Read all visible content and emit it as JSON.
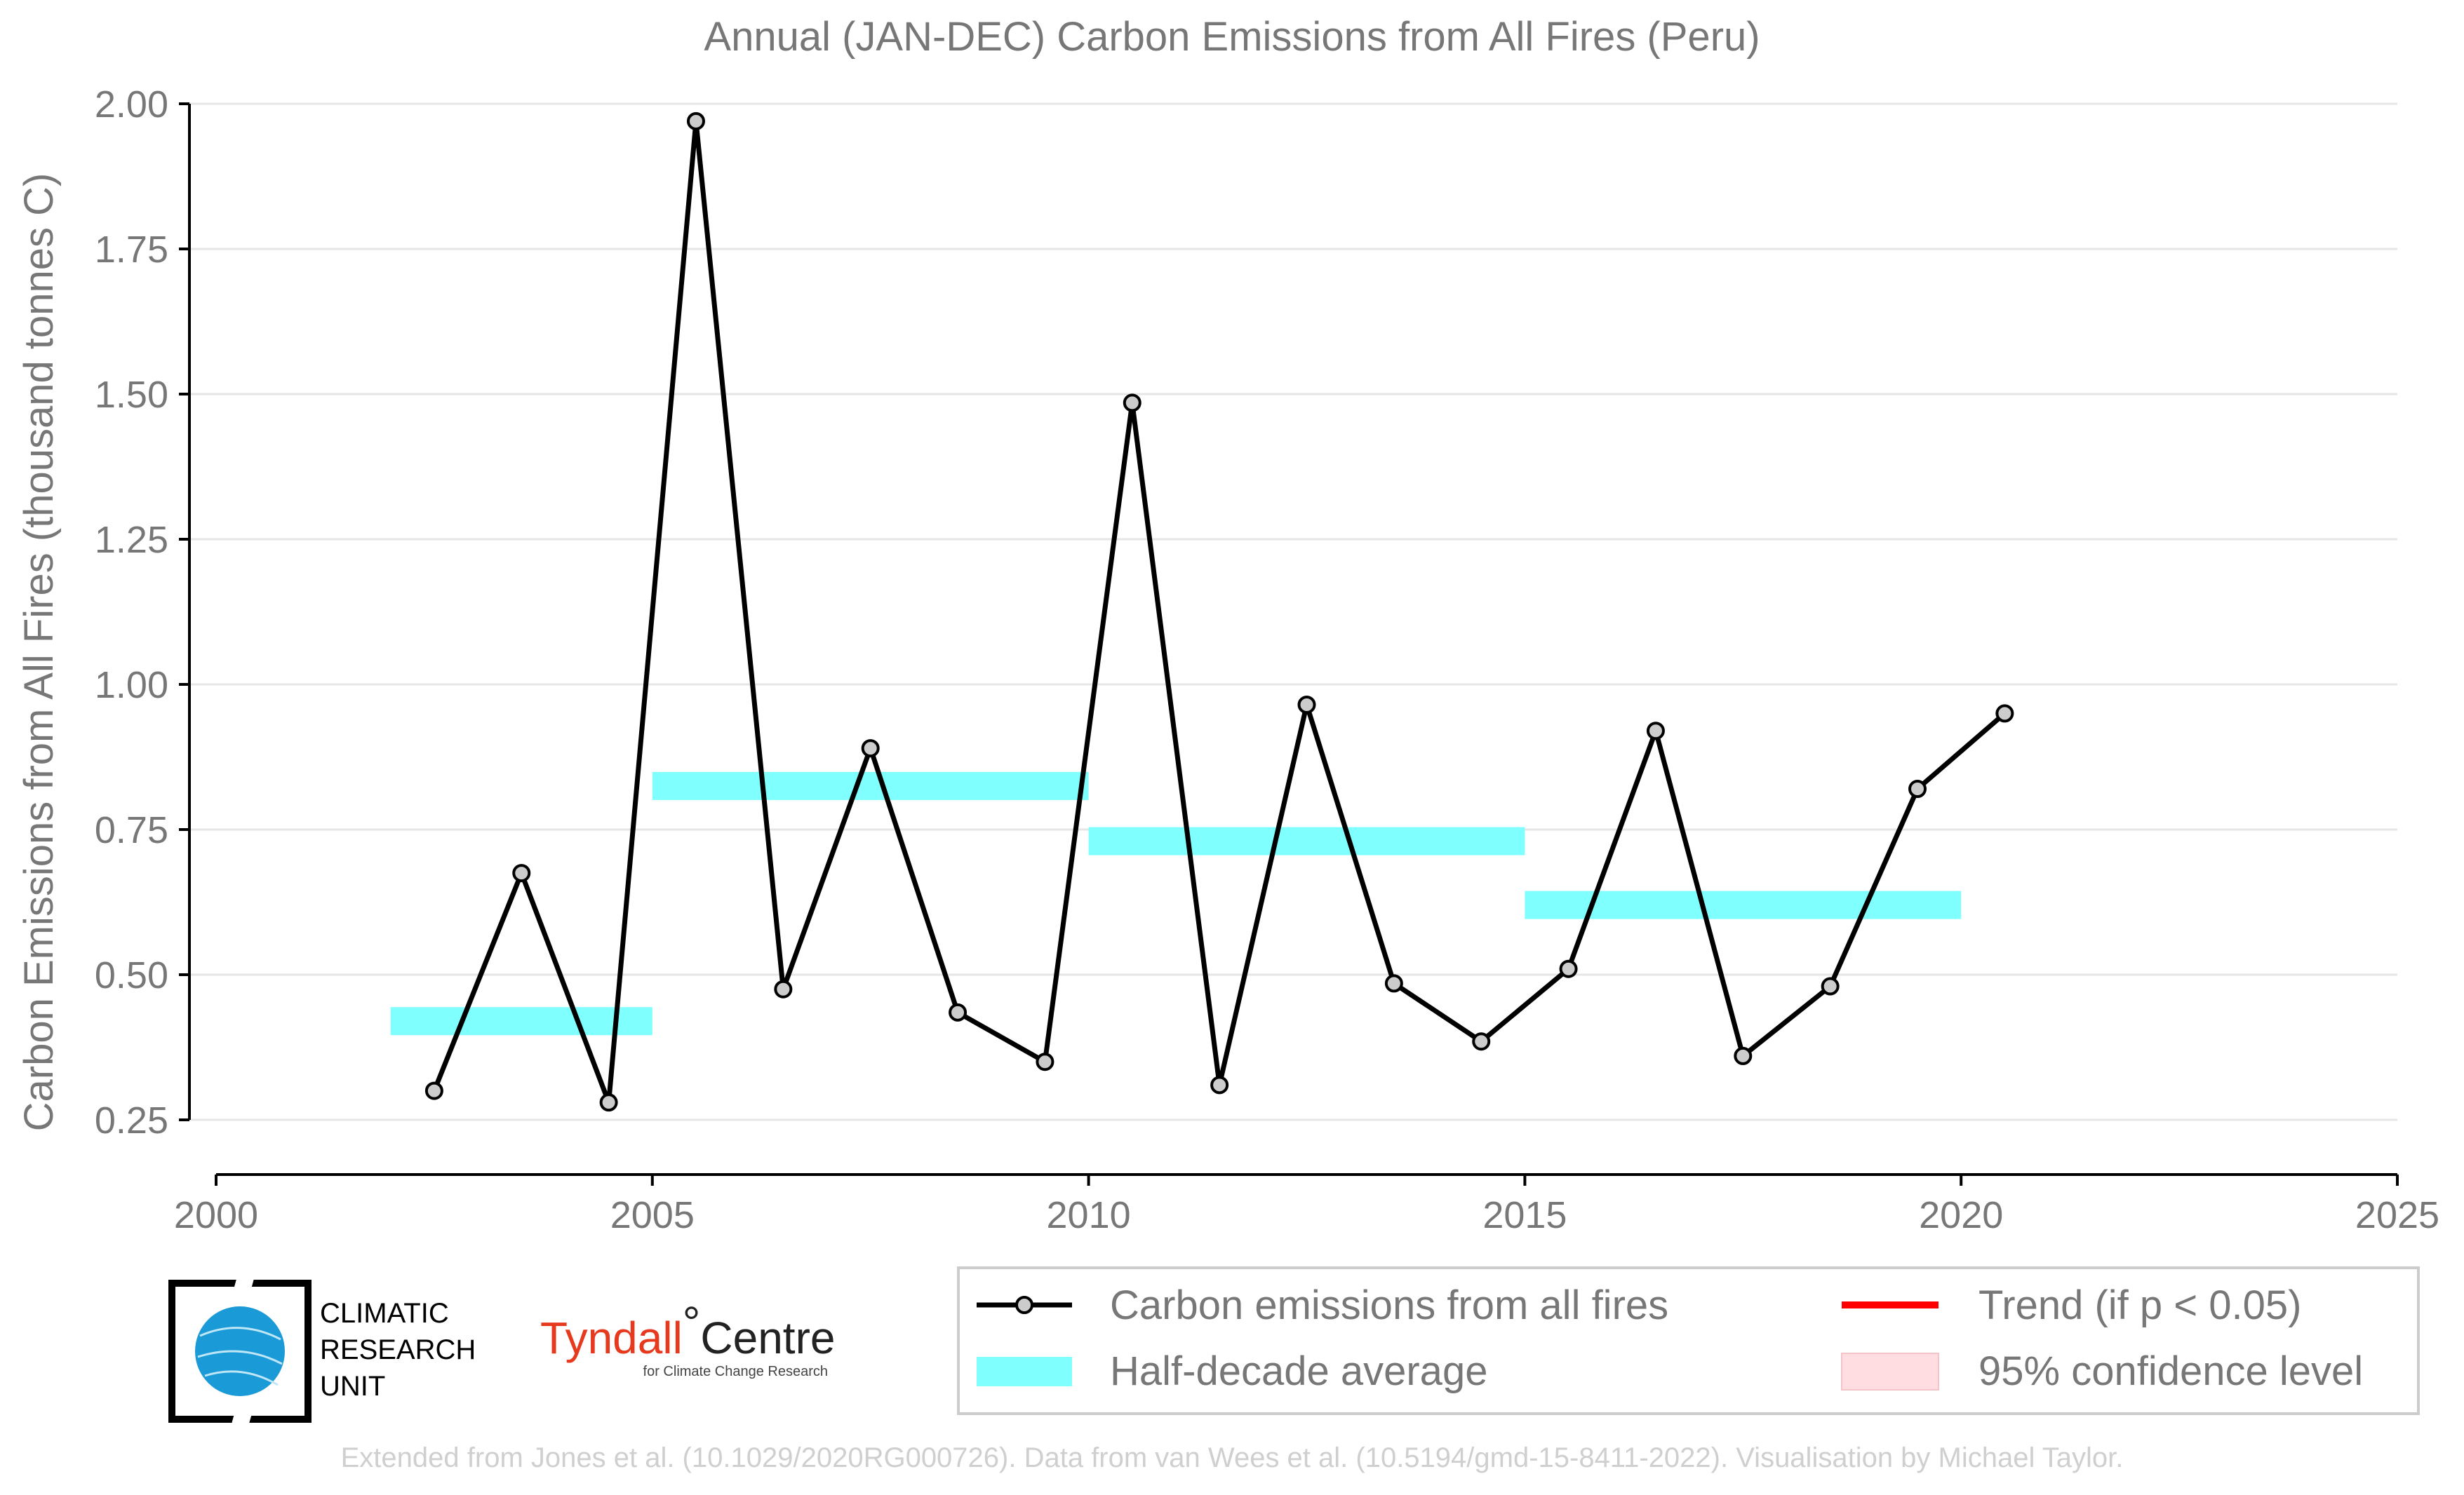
{
  "chart_data": {
    "type": "line",
    "title": "Annual (JAN-DEC) Carbon Emissions from All Fires (Peru)",
    "xlabel": "",
    "ylabel": "Carbon Emissions from All Fires (thousand tonnes C)",
    "xlim": [
      2000,
      2025
    ],
    "ylim": [
      0.25,
      2.0
    ],
    "xticks": [
      "2000",
      "2005",
      "2010",
      "2015",
      "2020",
      "2025"
    ],
    "yticks": [
      "0.25",
      "0.50",
      "0.75",
      "1.00",
      "1.25",
      "1.50",
      "1.75",
      "2.00"
    ],
    "grid": "horizontal",
    "legend_position": "bottom",
    "series": [
      {
        "name": "Carbon emissions from all fires",
        "color": "#000000",
        "x": [
          2002.5,
          2003.5,
          2004.5,
          2005.5,
          2006.5,
          2007.5,
          2008.5,
          2009.5,
          2010.5,
          2011.5,
          2012.5,
          2013.5,
          2014.5,
          2015.5,
          2016.5,
          2017.5,
          2018.5,
          2019.5,
          2020.5
        ],
        "values": [
          0.3,
          0.675,
          0.28,
          1.97,
          0.475,
          0.89,
          0.435,
          0.35,
          1.485,
          0.31,
          0.965,
          0.485,
          0.385,
          0.51,
          0.92,
          0.36,
          0.48,
          0.82,
          0.95
        ]
      }
    ],
    "half_decade_average": {
      "name": "Half-decade average",
      "color": "#80ffff",
      "segments": [
        {
          "x_start": 2002,
          "x_end": 2005,
          "value": 0.42
        },
        {
          "x_start": 2005,
          "x_end": 2010,
          "value": 0.825
        },
        {
          "x_start": 2010,
          "x_end": 2015,
          "value": 0.73
        },
        {
          "x_start": 2015,
          "x_end": 2020,
          "value": 0.62
        }
      ]
    },
    "legend": [
      {
        "label": "Carbon emissions from all fires",
        "kind": "line-marker",
        "color": "#000000"
      },
      {
        "label": "Half-decade average",
        "kind": "band",
        "color": "#80ffff"
      },
      {
        "label": "Trend (if p < 0.05)",
        "kind": "line",
        "color": "#ff0000"
      },
      {
        "label": "95% confidence level",
        "kind": "patch",
        "color": "#ffdde0"
      }
    ]
  },
  "logos": {
    "cru_lines": [
      "CLIMATIC",
      "RESEARCH",
      "UNIT"
    ],
    "tyndall_name": "Tyndall",
    "tyndall_degree": "°",
    "tyndall_centre": "Centre",
    "tyndall_sub": "for Climate Change Research"
  },
  "footer": "Extended from Jones et al. (10.1029/2020RG000726). Data from van Wees et al. (10.5194/gmd-15-8411-2022). Visualisation by Michael Taylor."
}
